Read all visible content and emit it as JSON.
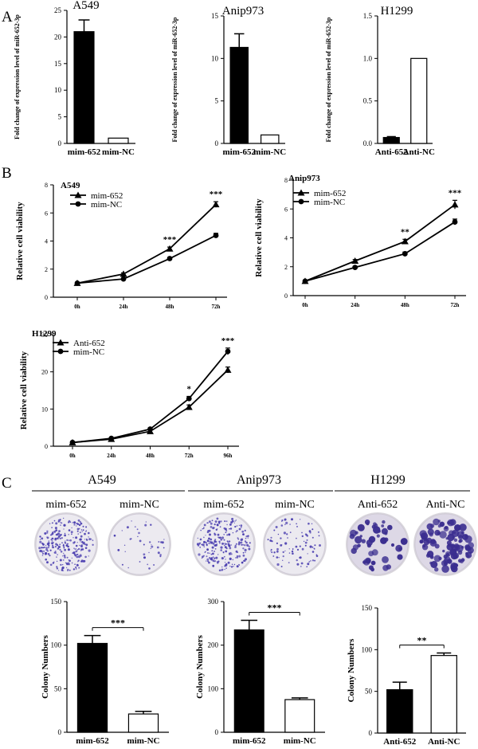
{
  "panels": [
    {
      "letter": "A"
    },
    {
      "letter": "B"
    },
    {
      "letter": "C"
    }
  ],
  "colony_section": {
    "groups": [
      {
        "title": "A549",
        "labels": [
          "mim-652",
          "mim-NC"
        ]
      },
      {
        "title": "Anip973",
        "labels": [
          "mim-652",
          "mim-NC"
        ]
      },
      {
        "title": "H1299",
        "labels": [
          "Anti-652",
          "Anti-NC"
        ]
      }
    ],
    "dish_images": [
      "dense-colonies-dish",
      "sparse-colonies-dish"
    ]
  },
  "chart_data": [
    {
      "id": "A1",
      "type": "bar",
      "title": "A549",
      "ylabel": "Fold change of expression level of miR-652-3p",
      "categories": [
        "mim-652",
        "mim-NC"
      ],
      "values": [
        21,
        1.0
      ],
      "errors": [
        2.2,
        0
      ],
      "fills": [
        "#000000",
        "#ffffff"
      ],
      "ylim": [
        0,
        25
      ],
      "yticks": [
        0,
        5,
        10,
        15,
        20,
        25
      ]
    },
    {
      "id": "A2",
      "type": "bar",
      "title": "Anip973",
      "ylabel": "Fold change of expression level of miR-652-3p",
      "categories": [
        "mim-652",
        "mim-NC"
      ],
      "values": [
        11.3,
        1.0
      ],
      "errors": [
        1.6,
        0
      ],
      "fills": [
        "#000000",
        "#ffffff"
      ],
      "ylim": [
        0,
        15
      ],
      "yticks": [
        0,
        5,
        10,
        15
      ]
    },
    {
      "id": "A3",
      "type": "bar",
      "title": "H1299",
      "ylabel": "Fold change of expression level of miR-652-3p",
      "categories": [
        "Anti-652",
        "Anti-NC"
      ],
      "values": [
        0.07,
        1.0
      ],
      "errors": [
        0.01,
        0
      ],
      "fills": [
        "#000000",
        "#ffffff"
      ],
      "ylim": [
        0,
        1.5
      ],
      "yticks": [
        "0.0",
        "0.5",
        "1.0",
        "1.5"
      ]
    },
    {
      "id": "B1",
      "type": "line",
      "title": "A549",
      "ylabel": "Relative cell viability",
      "x": [
        "0h",
        "24h",
        "48h",
        "72h"
      ],
      "ylim": [
        0,
        8
      ],
      "yticks": [
        0,
        2,
        4,
        6,
        8
      ],
      "series": [
        {
          "name": "mim-652",
          "marker": "triangle",
          "values": [
            1.0,
            1.65,
            3.45,
            6.6
          ],
          "errors": [
            0.05,
            0.08,
            0.12,
            0.2
          ]
        },
        {
          "name": "mim-NC",
          "marker": "circle",
          "values": [
            1.0,
            1.3,
            2.75,
            4.4
          ],
          "errors": [
            0.05,
            0.06,
            0.08,
            0.15
          ]
        }
      ],
      "significance": [
        {
          "x": "48h",
          "label": "***"
        },
        {
          "x": "72h",
          "label": "***"
        }
      ]
    },
    {
      "id": "B2",
      "type": "line",
      "title": "Anip973",
      "ylabel": "Relative cell viability",
      "x": [
        "0h",
        "24h",
        "48h",
        "72h"
      ],
      "ylim": [
        0,
        8
      ],
      "yticks": [
        0,
        2,
        4,
        6,
        8
      ],
      "series": [
        {
          "name": "mim-652",
          "marker": "triangle",
          "values": [
            1.0,
            2.4,
            3.75,
            6.3
          ],
          "errors": [
            0.05,
            0.1,
            0.15,
            0.3
          ]
        },
        {
          "name": "mim-NC",
          "marker": "circle",
          "values": [
            1.0,
            1.95,
            2.9,
            5.1
          ],
          "errors": [
            0.05,
            0.08,
            0.12,
            0.2
          ]
        }
      ],
      "significance": [
        {
          "x": "48h",
          "label": "**"
        },
        {
          "x": "72h",
          "label": "***"
        }
      ]
    },
    {
      "id": "B3",
      "type": "line",
      "title": "H1299",
      "ylabel": "Relative cell viability",
      "x": [
        "0h",
        "24h",
        "48h",
        "72h",
        "96h"
      ],
      "ylim": [
        0,
        30
      ],
      "yticks": [
        0,
        10,
        20,
        30
      ],
      "series": [
        {
          "name": "Anti-652",
          "marker": "triangle",
          "values": [
            1.0,
            1.9,
            4.0,
            10.5,
            20.5
          ],
          "errors": [
            0.1,
            0.15,
            0.3,
            0.6,
            0.8
          ]
        },
        {
          "name": "mim-NC",
          "marker": "circle",
          "values": [
            1.0,
            2.1,
            4.6,
            12.8,
            25.5
          ],
          "errors": [
            0.1,
            0.15,
            0.3,
            0.6,
            0.9
          ]
        }
      ],
      "significance": [
        {
          "x": "72h",
          "label": "*"
        },
        {
          "x": "96h",
          "label": "***"
        }
      ]
    },
    {
      "id": "C1",
      "type": "bar",
      "ylabel": "Colony Numbers",
      "categories": [
        "mim-652",
        "mim-NC"
      ],
      "values": [
        102,
        21
      ],
      "errors": [
        9,
        3
      ],
      "fills": [
        "#000000",
        "#ffffff"
      ],
      "ylim": [
        0,
        150
      ],
      "yticks": [
        0,
        50,
        100,
        150
      ],
      "significance": "***"
    },
    {
      "id": "C2",
      "type": "bar",
      "ylabel": "Colony Numbers",
      "categories": [
        "mim-652",
        "mim-NC"
      ],
      "values": [
        235,
        75
      ],
      "errors": [
        22,
        4
      ],
      "fills": [
        "#000000",
        "#ffffff"
      ],
      "ylim": [
        0,
        300
      ],
      "yticks": [
        0,
        100,
        200,
        300
      ],
      "significance": "***"
    },
    {
      "id": "C3",
      "type": "bar",
      "ylabel": "Colony Numbers",
      "categories": [
        "Anti-652",
        "Anti-NC"
      ],
      "values": [
        52,
        93
      ],
      "errors": [
        9,
        3
      ],
      "fills": [
        "#000000",
        "#ffffff"
      ],
      "ylim": [
        0,
        150
      ],
      "yticks": [
        0,
        50,
        100,
        150
      ],
      "significance": "**"
    }
  ]
}
